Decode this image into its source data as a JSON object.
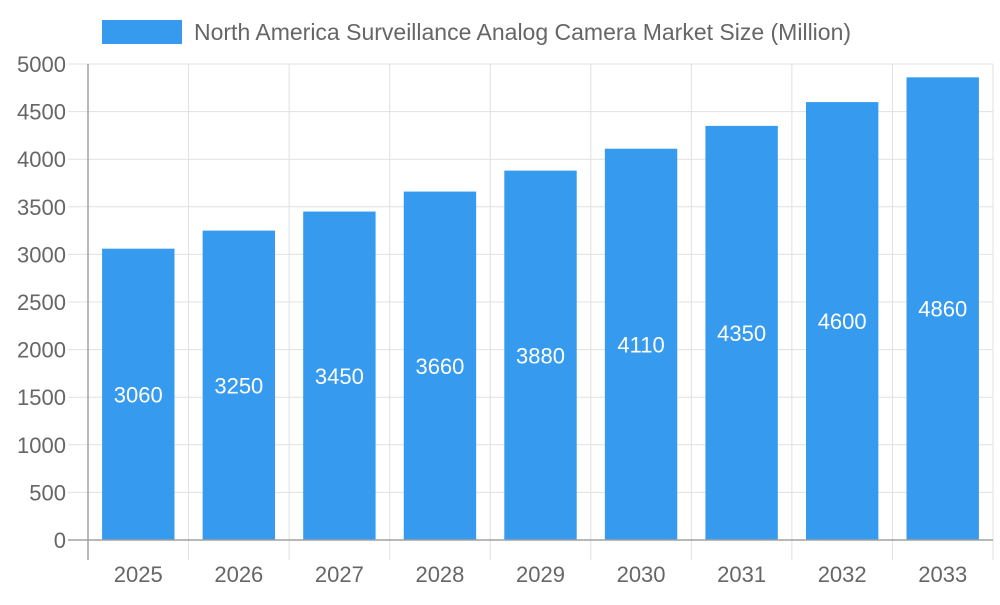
{
  "chart_data": {
    "type": "bar",
    "title": "",
    "xlabel": "",
    "ylabel": "",
    "categories": [
      "2025",
      "2026",
      "2027",
      "2028",
      "2029",
      "2030",
      "2031",
      "2032",
      "2033"
    ],
    "series": [
      {
        "name": "North America Surveillance Analog Camera Market Size (Million)",
        "values": [
          3060,
          3250,
          3450,
          3660,
          3880,
          4110,
          4350,
          4600,
          4860
        ]
      }
    ],
    "ylim": [
      0,
      5000
    ],
    "yticks": [
      0,
      500,
      1000,
      1500,
      2000,
      2500,
      3000,
      3500,
      4000,
      4500,
      5000
    ],
    "grid": true,
    "legend": "top-center",
    "data_labels": true,
    "colors": {
      "bar": "#369bef",
      "label": "#ffffff",
      "text": "#666666",
      "grid": "#e0e0e0",
      "axis": "#a0a0a0"
    }
  }
}
